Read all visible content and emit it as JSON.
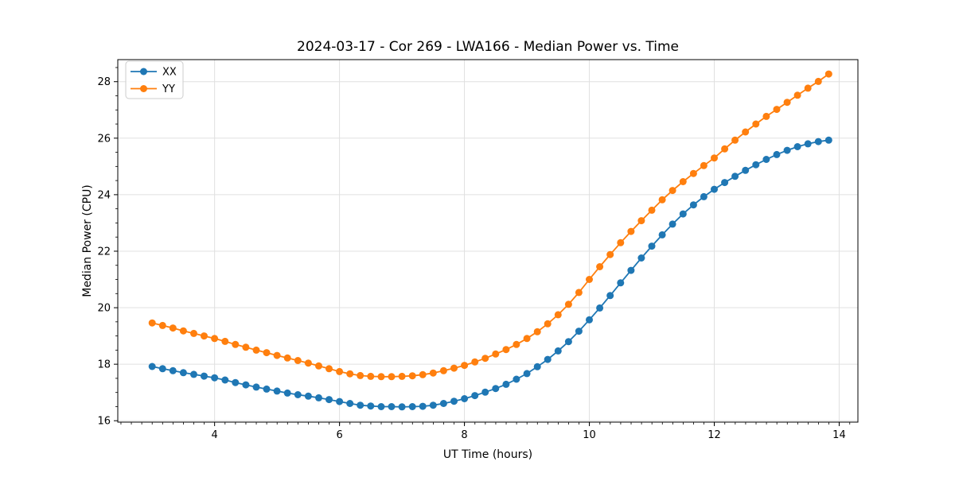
{
  "window": {
    "background": "#ffffff"
  },
  "colors": {
    "grid": "#e0e0e0",
    "spine": "#000000",
    "text": "#000000",
    "legend_border": "#cccccc",
    "legend_background": "#ffffff"
  },
  "chart_data": {
    "type": "line",
    "title": "2024-03-17 - Cor 269 - LWA166 - Median Power vs. Time",
    "xlabel": "UT Time (hours)",
    "ylabel": "Median Power (CPU)",
    "xlim": [
      2.45,
      14.3
    ],
    "ylim": [
      15.95,
      28.78
    ],
    "x_major_ticks": [
      4,
      6,
      8,
      10,
      12,
      14
    ],
    "y_major_ticks": [
      16,
      18,
      20,
      22,
      24,
      26,
      28
    ],
    "x_minor_step": 0.1667,
    "y_minor_step": 0.5,
    "grid": true,
    "legend_position": "upper left",
    "marker": "circle",
    "x": [
      3.0,
      3.167,
      3.333,
      3.5,
      3.667,
      3.833,
      4.0,
      4.167,
      4.333,
      4.5,
      4.667,
      4.833,
      5.0,
      5.167,
      5.333,
      5.5,
      5.667,
      5.833,
      6.0,
      6.167,
      6.333,
      6.5,
      6.667,
      6.833,
      7.0,
      7.167,
      7.333,
      7.5,
      7.667,
      7.833,
      8.0,
      8.167,
      8.333,
      8.5,
      8.667,
      8.833,
      9.0,
      9.167,
      9.333,
      9.5,
      9.667,
      9.833,
      10.0,
      10.167,
      10.333,
      10.5,
      10.667,
      10.833,
      11.0,
      11.167,
      11.333,
      11.5,
      11.667,
      11.833,
      12.0,
      12.167,
      12.333,
      12.5,
      12.667,
      12.833,
      13.0,
      13.167,
      13.333,
      13.5,
      13.667,
      13.833
    ],
    "series": [
      {
        "name": "XX",
        "color": "#1f77b4",
        "values": [
          17.92,
          17.84,
          17.77,
          17.7,
          17.64,
          17.58,
          17.52,
          17.44,
          17.35,
          17.27,
          17.19,
          17.12,
          17.05,
          16.98,
          16.92,
          16.87,
          16.81,
          16.75,
          16.68,
          16.61,
          16.55,
          16.52,
          16.5,
          16.5,
          16.49,
          16.5,
          16.51,
          16.55,
          16.61,
          16.69,
          16.78,
          16.89,
          17.01,
          17.14,
          17.29,
          17.47,
          17.67,
          17.91,
          18.17,
          18.47,
          18.8,
          19.17,
          19.57,
          19.99,
          20.43,
          20.88,
          21.32,
          21.76,
          22.18,
          22.58,
          22.96,
          23.32,
          23.64,
          23.93,
          24.19,
          24.43,
          24.65,
          24.86,
          25.06,
          25.25,
          25.42,
          25.57,
          25.7,
          25.8,
          25.88,
          25.93
        ]
      },
      {
        "name": "YY",
        "color": "#ff7f0e",
        "values": [
          19.46,
          19.37,
          19.28,
          19.18,
          19.09,
          19.0,
          18.91,
          18.81,
          18.7,
          18.6,
          18.5,
          18.41,
          18.31,
          18.22,
          18.13,
          18.04,
          17.94,
          17.84,
          17.74,
          17.66,
          17.6,
          17.57,
          17.56,
          17.56,
          17.57,
          17.59,
          17.63,
          17.69,
          17.77,
          17.86,
          17.96,
          18.08,
          18.21,
          18.36,
          18.52,
          18.7,
          18.91,
          19.15,
          19.43,
          19.75,
          20.12,
          20.54,
          21.0,
          21.45,
          21.88,
          22.3,
          22.7,
          23.08,
          23.45,
          23.82,
          24.15,
          24.46,
          24.75,
          25.03,
          25.3,
          25.62,
          25.93,
          26.22,
          26.5,
          26.77,
          27.02,
          27.27,
          27.52,
          27.77,
          28.01,
          28.27
        ]
      }
    ]
  }
}
